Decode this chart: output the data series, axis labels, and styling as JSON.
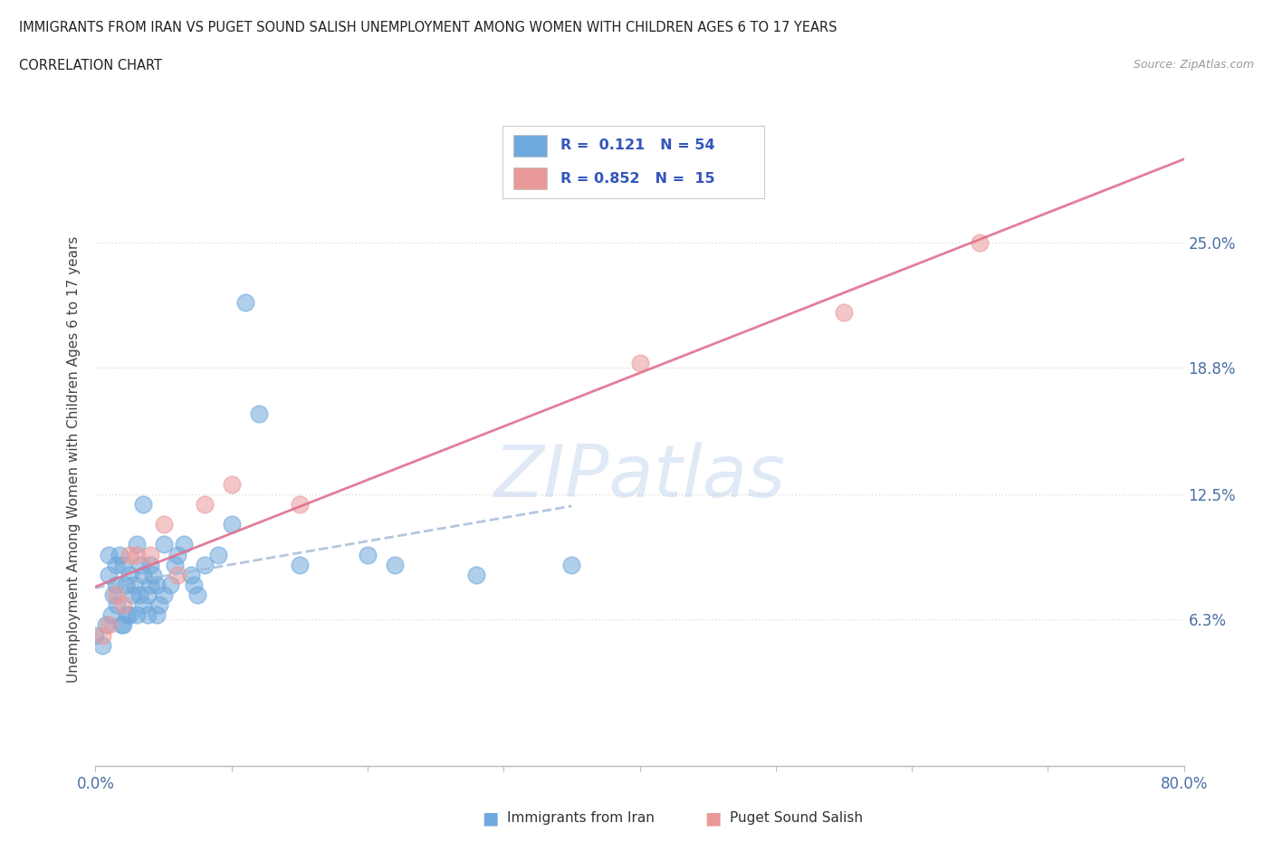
{
  "title_line1": "IMMIGRANTS FROM IRAN VS PUGET SOUND SALISH UNEMPLOYMENT AMONG WOMEN WITH CHILDREN AGES 6 TO 17 YEARS",
  "title_line2": "CORRELATION CHART",
  "source": "Source: ZipAtlas.com",
  "ylabel": "Unemployment Among Women with Children Ages 6 to 17 years",
  "xlim": [
    0.0,
    0.8
  ],
  "ylim": [
    -0.01,
    0.295
  ],
  "ytick_right_labels": [
    "6.3%",
    "12.5%",
    "18.8%",
    "25.0%"
  ],
  "ytick_right_values": [
    0.063,
    0.125,
    0.188,
    0.25
  ],
  "watermark": "ZIPatlas",
  "legend_label1": "Immigrants from Iran",
  "legend_label2": "Puget Sound Salish",
  "r1": "0.121",
  "n1": "54",
  "r2": "0.852",
  "n2": "15",
  "color_iran": "#6fa8dc",
  "color_salish": "#ea9999",
  "color_iran_line": "#a0b8d8",
  "color_salish_line": "#e07090",
  "iran_x": [
    0.0,
    0.005,
    0.008,
    0.01,
    0.01,
    0.012,
    0.013,
    0.015,
    0.015,
    0.016,
    0.018,
    0.019,
    0.02,
    0.02,
    0.022,
    0.023,
    0.025,
    0.025,
    0.027,
    0.028,
    0.03,
    0.03,
    0.032,
    0.033,
    0.035,
    0.035,
    0.038,
    0.038,
    0.04,
    0.04,
    0.042,
    0.045,
    0.045,
    0.047,
    0.05,
    0.05,
    0.055,
    0.058,
    0.06,
    0.065,
    0.07,
    0.072,
    0.075,
    0.08,
    0.09,
    0.1,
    0.11,
    0.12,
    0.15,
    0.2,
    0.22,
    0.28,
    0.35,
    0.035
  ],
  "iran_y": [
    0.055,
    0.05,
    0.06,
    0.085,
    0.095,
    0.065,
    0.075,
    0.08,
    0.09,
    0.07,
    0.095,
    0.06,
    0.06,
    0.09,
    0.08,
    0.065,
    0.065,
    0.085,
    0.075,
    0.08,
    0.065,
    0.1,
    0.075,
    0.09,
    0.07,
    0.085,
    0.075,
    0.065,
    0.08,
    0.09,
    0.085,
    0.065,
    0.08,
    0.07,
    0.075,
    0.1,
    0.08,
    0.09,
    0.095,
    0.1,
    0.085,
    0.08,
    0.075,
    0.09,
    0.095,
    0.11,
    0.22,
    0.165,
    0.09,
    0.095,
    0.09,
    0.085,
    0.09,
    0.12
  ],
  "salish_x": [
    0.005,
    0.01,
    0.015,
    0.02,
    0.025,
    0.03,
    0.04,
    0.05,
    0.06,
    0.08,
    0.1,
    0.15,
    0.4,
    0.55,
    0.65
  ],
  "salish_y": [
    0.055,
    0.06,
    0.075,
    0.07,
    0.095,
    0.095,
    0.095,
    0.11,
    0.085,
    0.12,
    0.13,
    0.12,
    0.19,
    0.215,
    0.25
  ],
  "grid_color": "#dddddd",
  "background_color": "#ffffff"
}
